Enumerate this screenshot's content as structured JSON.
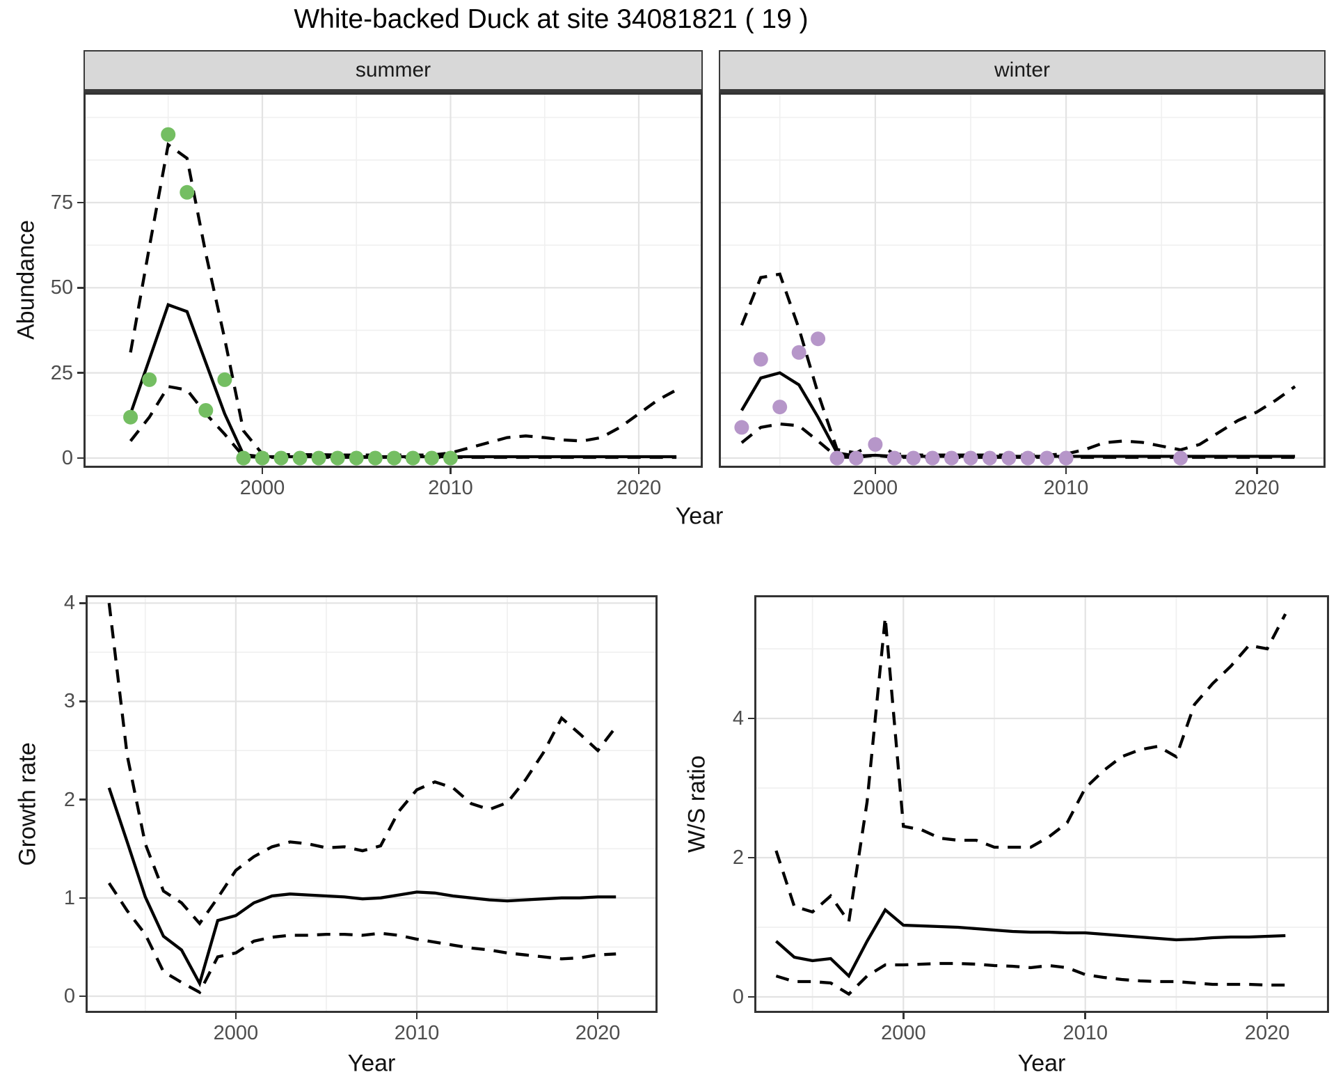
{
  "page": {
    "title": "White-backed Duck at site 34081821 ( 19 )"
  },
  "colors": {
    "summer_point": "#74BE62",
    "winter_point": "#B696C9",
    "line": "#000000",
    "strip_bg": "#D8D8D8",
    "grid_major": "#E3E3E3",
    "grid_minor": "#F0F0F0",
    "panel_border": "#333333",
    "tick_text": "#4D4D4D"
  },
  "chart_data": [
    {
      "id": "summer-abundance",
      "type": "line",
      "facet_label": "summer",
      "xlabel": "Year",
      "ylabel": "Abundance",
      "xlim": [
        1990.5,
        2023.4
      ],
      "ylim": [
        -2.87,
        107.3
      ],
      "x_ticks": [
        2000,
        2010,
        2020
      ],
      "x_minor": [
        1995,
        2005,
        2015
      ],
      "y_ticks": [
        0,
        25,
        50,
        75
      ],
      "y_minor": [
        12.5,
        37.5,
        62.5,
        87.5,
        100
      ],
      "grid": true,
      "legend": "none",
      "years": [
        1993,
        1994,
        1995,
        1996,
        1997,
        1998,
        1999,
        2000,
        2001,
        2002,
        2003,
        2004,
        2005,
        2006,
        2007,
        2008,
        2009,
        2010,
        2011,
        2012,
        2013,
        2014,
        2015,
        2016,
        2017,
        2018,
        2019,
        2020,
        2021,
        2022
      ],
      "series": [
        {
          "name": "upper CI",
          "style": "dashed",
          "y": [
            31,
            62,
            92,
            88,
            60,
            35,
            8,
            1.2,
            1,
            1,
            1,
            0.9,
            0.9,
            0.9,
            0.9,
            0.9,
            0.9,
            1.5,
            3,
            4.5,
            6,
            6.5,
            6,
            5.3,
            5,
            6,
            9,
            13,
            17,
            20
          ]
        },
        {
          "name": "lower CI",
          "style": "dashed",
          "y": [
            5,
            12,
            21,
            20,
            13,
            7,
            0.5,
            0.2,
            0.2,
            0.2,
            0.2,
            0.2,
            0.2,
            0.2,
            0.2,
            0.2,
            0.2,
            0.2,
            0.2,
            0.2,
            0.2,
            0.2,
            0.2,
            0.2,
            0.2,
            0.2,
            0.2,
            0.2,
            0.2,
            0.2
          ]
        },
        {
          "name": "median",
          "style": "solid",
          "y": [
            13,
            29,
            45,
            43,
            28,
            13,
            1,
            0.4,
            0.4,
            0.4,
            0.4,
            0.4,
            0.4,
            0.4,
            0.4,
            0.4,
            0.4,
            0.4,
            0.4,
            0.4,
            0.4,
            0.4,
            0.4,
            0.4,
            0.4,
            0.4,
            0.4,
            0.4,
            0.4,
            0.4
          ]
        }
      ],
      "points": {
        "name": "observed-counts",
        "color": "#74BE62",
        "x": [
          1993,
          1994,
          1995,
          1996,
          1997,
          1998,
          1999,
          2000,
          2001,
          2002,
          2003,
          2004,
          2005,
          2006,
          2007,
          2008,
          2009,
          2010
        ],
        "y": [
          12,
          23,
          95,
          78,
          14,
          23,
          0,
          0,
          0,
          0,
          0,
          0,
          0,
          0,
          0,
          0,
          0,
          0
        ]
      }
    },
    {
      "id": "winter-abundance",
      "type": "line",
      "facet_label": "winter",
      "xlabel": "Year",
      "ylabel": "Abundance",
      "xlim": [
        1991.8,
        2023.6
      ],
      "ylim": [
        -2.87,
        107.3
      ],
      "x_ticks": [
        2000,
        2010,
        2020
      ],
      "x_minor": [
        1995,
        2005,
        2015
      ],
      "y_ticks": [
        0,
        25,
        50,
        75
      ],
      "y_minor": [
        12.5,
        37.5,
        62.5,
        87.5,
        100
      ],
      "grid": true,
      "legend": "none",
      "years": [
        1993,
        1994,
        1995,
        1996,
        1997,
        1998,
        1999,
        2000,
        2001,
        2002,
        2003,
        2004,
        2005,
        2006,
        2007,
        2008,
        2009,
        2010,
        2011,
        2012,
        2013,
        2014,
        2015,
        2016,
        2017,
        2018,
        2019,
        2020,
        2021,
        2022
      ],
      "series": [
        {
          "name": "upper CI",
          "style": "dashed",
          "y": [
            39,
            53,
            54,
            38,
            19,
            2.5,
            1.5,
            4.5,
            1.2,
            0.9,
            0.9,
            0.9,
            0.9,
            0.9,
            0.9,
            0.9,
            0.9,
            1.2,
            2.5,
            4.5,
            5,
            4.6,
            3.5,
            2.4,
            4,
            7.5,
            11,
            13.5,
            17,
            21
          ]
        },
        {
          "name": "lower CI",
          "style": "dashed",
          "y": [
            4.5,
            9,
            10,
            9.5,
            5,
            0.3,
            0.2,
            0.8,
            0.2,
            0.2,
            0.2,
            0.2,
            0.2,
            0.2,
            0.2,
            0.2,
            0.2,
            0.2,
            0.2,
            0.2,
            0.2,
            0.2,
            0.2,
            0.2,
            0.2,
            0.2,
            0.2,
            0.2,
            0.2,
            0.2
          ]
        },
        {
          "name": "median",
          "style": "solid",
          "y": [
            14,
            23.5,
            25,
            21.5,
            12,
            1.5,
            0.6,
            0.8,
            0.5,
            0.5,
            0.5,
            0.5,
            0.5,
            0.5,
            0.5,
            0.5,
            0.5,
            0.5,
            0.5,
            0.5,
            0.5,
            0.5,
            0.5,
            0.5,
            0.5,
            0.5,
            0.5,
            0.5,
            0.5,
            0.5
          ]
        }
      ],
      "points": {
        "name": "observed-counts",
        "color": "#B696C9",
        "x": [
          1993,
          1994,
          1995,
          1996,
          1997,
          1998,
          1999,
          2000,
          2001,
          2002,
          2003,
          2004,
          2005,
          2006,
          2007,
          2008,
          2009,
          2010,
          2016
        ],
        "y": [
          9,
          29,
          15,
          31,
          35,
          0,
          0,
          4,
          0,
          0,
          0,
          0,
          0,
          0,
          0,
          0,
          0,
          0,
          0
        ]
      }
    },
    {
      "id": "growth-rate",
      "type": "line",
      "facet_label": "",
      "xlabel": "Year",
      "ylabel": "Growth rate",
      "xlim": [
        1991.7,
        2023.3
      ],
      "ylim": [
        -0.17,
        4.08
      ],
      "x_ticks": [
        2000,
        2010,
        2020
      ],
      "x_minor": [
        1995,
        2005,
        2015
      ],
      "y_ticks": [
        0,
        1,
        2,
        3,
        4
      ],
      "y_minor": [
        0.5,
        1.5,
        2.5,
        3.5
      ],
      "grid": true,
      "legend": "none",
      "years": [
        1993,
        1994,
        1995,
        1996,
        1997,
        1998,
        1999,
        2000,
        2001,
        2002,
        2003,
        2004,
        2005,
        2006,
        2007,
        2008,
        2009,
        2010,
        2011,
        2012,
        2013,
        2014,
        2015,
        2016,
        2017,
        2018,
        2019,
        2020,
        2021
      ],
      "series": [
        {
          "name": "upper CI",
          "style": "dashed",
          "y": [
            4.0,
            2.45,
            1.55,
            1.07,
            0.95,
            0.74,
            1.0,
            1.28,
            1.42,
            1.52,
            1.57,
            1.55,
            1.51,
            1.52,
            1.48,
            1.53,
            1.88,
            2.1,
            2.18,
            2.12,
            1.96,
            1.9,
            1.97,
            2.2,
            2.48,
            2.83,
            2.67,
            2.5,
            2.74
          ]
        },
        {
          "name": "lower CI",
          "style": "dashed",
          "y": [
            1.15,
            0.87,
            0.63,
            0.25,
            0.14,
            0.04,
            0.4,
            0.44,
            0.56,
            0.6,
            0.62,
            0.62,
            0.63,
            0.63,
            0.62,
            0.64,
            0.62,
            0.58,
            0.55,
            0.52,
            0.49,
            0.47,
            0.44,
            0.42,
            0.4,
            0.38,
            0.39,
            0.42,
            0.43
          ]
        },
        {
          "name": "median",
          "style": "solid",
          "y": [
            2.12,
            1.57,
            1.01,
            0.61,
            0.47,
            0.13,
            0.77,
            0.82,
            0.95,
            1.02,
            1.04,
            1.03,
            1.02,
            1.01,
            0.99,
            1.0,
            1.03,
            1.06,
            1.05,
            1.02,
            1.0,
            0.98,
            0.97,
            0.98,
            0.99,
            1.0,
            1.0,
            1.01,
            1.01
          ]
        }
      ]
    },
    {
      "id": "ws-ratio",
      "type": "line",
      "facet_label": "",
      "xlabel": "Year",
      "ylabel": "W/S ratio",
      "xlim": [
        1991.8,
        2023.4
      ],
      "ylim": [
        -0.23,
        5.77
      ],
      "x_ticks": [
        2000,
        2010,
        2020
      ],
      "x_minor": [
        1995,
        2005,
        2015
      ],
      "y_ticks": [
        0,
        2,
        4
      ],
      "y_minor": [
        1,
        3,
        5
      ],
      "grid": true,
      "legend": "none",
      "years": [
        1993,
        1994,
        1995,
        1996,
        1997,
        1998,
        1999,
        2000,
        2001,
        2002,
        2003,
        2004,
        2005,
        2006,
        2007,
        2008,
        2009,
        2010,
        2011,
        2012,
        2013,
        2014,
        2015,
        2016,
        2017,
        2018,
        2019,
        2020,
        2021
      ],
      "series": [
        {
          "name": "upper CI",
          "style": "dashed",
          "y": [
            2.1,
            1.3,
            1.22,
            1.45,
            1.08,
            2.8,
            5.45,
            2.45,
            2.4,
            2.28,
            2.25,
            2.25,
            2.15,
            2.15,
            2.15,
            2.3,
            2.5,
            3.0,
            3.25,
            3.45,
            3.55,
            3.6,
            3.45,
            4.2,
            4.5,
            4.75,
            5.05,
            5.0,
            5.5
          ]
        },
        {
          "name": "lower CI",
          "style": "dashed",
          "y": [
            0.3,
            0.22,
            0.22,
            0.2,
            0.04,
            0.3,
            0.46,
            0.46,
            0.47,
            0.48,
            0.48,
            0.47,
            0.45,
            0.44,
            0.42,
            0.45,
            0.42,
            0.32,
            0.28,
            0.25,
            0.23,
            0.22,
            0.22,
            0.2,
            0.18,
            0.18,
            0.18,
            0.17,
            0.17
          ]
        },
        {
          "name": "median",
          "style": "solid",
          "y": [
            0.8,
            0.57,
            0.52,
            0.55,
            0.3,
            0.8,
            1.25,
            1.03,
            1.02,
            1.01,
            1.0,
            0.98,
            0.96,
            0.94,
            0.93,
            0.93,
            0.92,
            0.92,
            0.9,
            0.88,
            0.86,
            0.84,
            0.82,
            0.83,
            0.85,
            0.86,
            0.86,
            0.87,
            0.88
          ]
        }
      ]
    }
  ]
}
